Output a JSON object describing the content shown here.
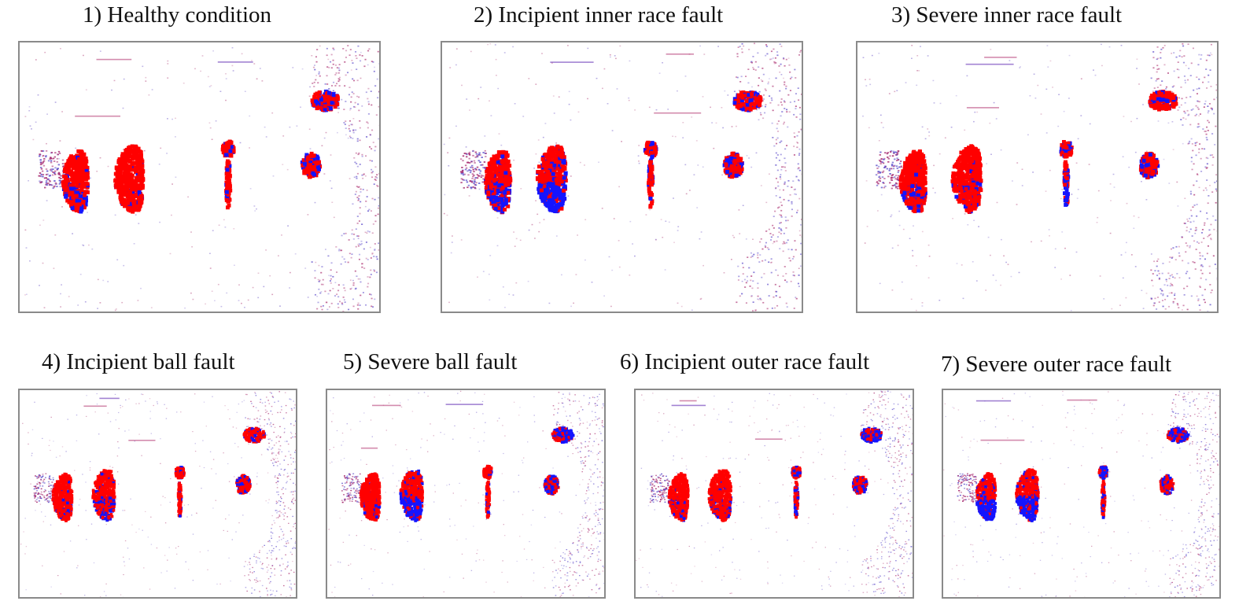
{
  "colors": {
    "primary_class": "#ff0000",
    "secondary_class": "#1414ff",
    "frame_border": "#8a8a8a",
    "background": "#ffffff"
  },
  "panels": [
    {
      "label": "1) Healthy condition",
      "blue_fraction": [
        0.15,
        0.05,
        0.2,
        0.2,
        0.35,
        0.4
      ]
    },
    {
      "label": "2) Incipient inner race fault",
      "blue_fraction": [
        0.35,
        0.5,
        0.3,
        0.25,
        0.3,
        0.35
      ]
    },
    {
      "label": "3) Severe inner race fault",
      "blue_fraction": [
        0.15,
        0.1,
        0.3,
        0.35,
        0.35,
        0.3
      ]
    },
    {
      "label": "4) Incipient ball fault",
      "blue_fraction": [
        0.1,
        0.2,
        0.15,
        0.15,
        0.25,
        0.2
      ]
    },
    {
      "label": "5) Severe ball fault",
      "blue_fraction": [
        0.1,
        0.4,
        0.2,
        0.2,
        0.5,
        0.6
      ]
    },
    {
      "label": "6) Incipient outer race fault",
      "blue_fraction": [
        0.1,
        0.1,
        0.2,
        0.25,
        0.45,
        0.6
      ]
    },
    {
      "label": "7) Severe outer race fault",
      "blue_fraction": [
        0.45,
        0.45,
        0.7,
        0.3,
        0.4,
        0.6
      ]
    }
  ]
}
